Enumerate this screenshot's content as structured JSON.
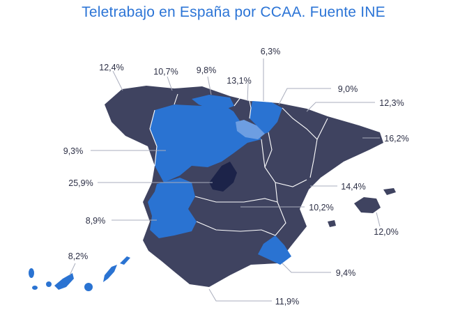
{
  "title": "Teletrabajo en España por CCAA. Fuente INE",
  "colors": {
    "title": "#2b74d6",
    "dark": "#3f4360",
    "blue": "#2a73d2",
    "light_blue": "#6d9ee2",
    "navy": "#1c2349",
    "text": "#2c2f45"
  },
  "regions": [
    {
      "value": "12,4%",
      "fill": "dark"
    },
    {
      "value": "10,7%",
      "fill": "dark"
    },
    {
      "value": "9,8%",
      "fill": "blue"
    },
    {
      "value": "6,3%",
      "fill": "dark"
    },
    {
      "value": "13,1%",
      "fill": "dark"
    },
    {
      "value": "9,0%",
      "fill": "blue"
    },
    {
      "value": "12,3%",
      "fill": "dark"
    },
    {
      "value": "16,2%",
      "fill": "dark"
    },
    {
      "value": "9,3%",
      "fill": "blue"
    },
    {
      "value": "25,9%",
      "fill": "navy"
    },
    {
      "value": "14,4%",
      "fill": "dark"
    },
    {
      "value": "10,2%",
      "fill": "dark"
    },
    {
      "value": "8,9%",
      "fill": "blue"
    },
    {
      "value": "12,0%",
      "fill": "dark"
    },
    {
      "value": "8,2%",
      "fill": "blue"
    },
    {
      "value": "9,4%",
      "fill": "blue"
    },
    {
      "value": "11,9%",
      "fill": "dark"
    }
  ]
}
